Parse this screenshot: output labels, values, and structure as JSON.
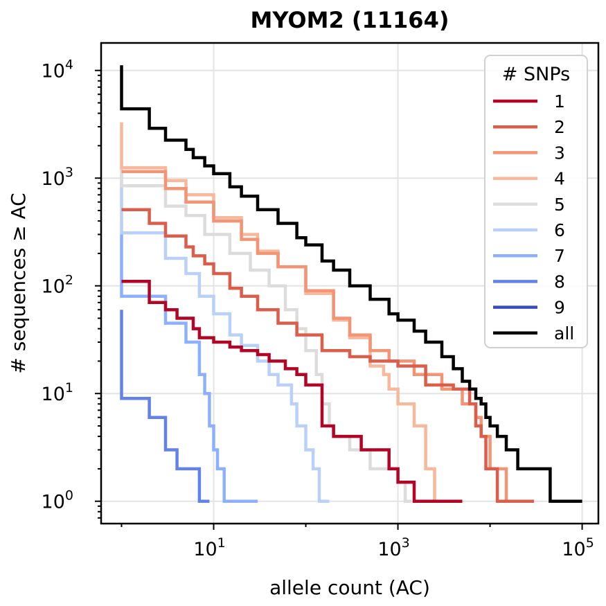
{
  "chart_data": {
    "type": "line",
    "title": "MYOM2 (11164)",
    "xlabel": "allele count (AC)",
    "ylabel": "# sequences ≥ AC",
    "xscale": "log",
    "yscale": "log",
    "xlim": [
      0.6,
      150000
    ],
    "ylim": [
      0.62,
      18000
    ],
    "xticks": [
      {
        "value": 10,
        "base": "10",
        "exp": "1"
      },
      {
        "value": 1000,
        "base": "10",
        "exp": "3"
      },
      {
        "value": 100000,
        "base": "10",
        "exp": "5"
      }
    ],
    "yticks": [
      {
        "value": 1,
        "base": "10",
        "exp": "0"
      },
      {
        "value": 10,
        "base": "10",
        "exp": "1"
      },
      {
        "value": 100,
        "base": "10",
        "exp": "2"
      },
      {
        "value": 1000,
        "base": "10",
        "exp": "3"
      },
      {
        "value": 10000,
        "base": "10",
        "exp": "4"
      }
    ],
    "grid": true,
    "legend": {
      "title": "# SNPs",
      "position": "top-right"
    },
    "series": [
      {
        "name": "all",
        "color": "#000000",
        "points": [
          [
            1,
            11164
          ],
          [
            1,
            4400
          ],
          [
            2,
            4400
          ],
          [
            2,
            2900
          ],
          [
            3,
            2900
          ],
          [
            3,
            2250
          ],
          [
            4,
            2250
          ],
          [
            5,
            1850
          ],
          [
            6,
            1550
          ],
          [
            8,
            1300
          ],
          [
            10,
            1100
          ],
          [
            15,
            830
          ],
          [
            20,
            680
          ],
          [
            30,
            510
          ],
          [
            50,
            380
          ],
          [
            80,
            280
          ],
          [
            100,
            240
          ],
          [
            150,
            170
          ],
          [
            200,
            140
          ],
          [
            300,
            100
          ],
          [
            500,
            75
          ],
          [
            800,
            55
          ],
          [
            1000,
            48
          ],
          [
            1500,
            38
          ],
          [
            2000,
            30
          ],
          [
            3000,
            22
          ],
          [
            4000,
            17
          ],
          [
            5000,
            13
          ],
          [
            6000,
            11
          ],
          [
            7000,
            9
          ],
          [
            8000,
            8
          ],
          [
            9000,
            6
          ],
          [
            10000,
            5
          ],
          [
            12000,
            4
          ],
          [
            15000,
            3
          ],
          [
            20000,
            3
          ],
          [
            20000,
            2
          ],
          [
            45000,
            2
          ],
          [
            45000,
            1
          ],
          [
            100000,
            1
          ]
        ]
      },
      {
        "name": "1",
        "color": "#b40426",
        "points": [
          [
            1,
            110
          ],
          [
            2,
            110
          ],
          [
            2,
            70
          ],
          [
            3,
            70
          ],
          [
            3,
            60
          ],
          [
            4,
            60
          ],
          [
            4,
            50
          ],
          [
            5,
            50
          ],
          [
            6,
            40
          ],
          [
            7,
            33
          ],
          [
            10,
            30
          ],
          [
            15,
            27
          ],
          [
            20,
            25
          ],
          [
            30,
            23
          ],
          [
            40,
            20
          ],
          [
            60,
            17
          ],
          [
            80,
            15
          ],
          [
            100,
            12
          ],
          [
            150,
            9
          ],
          [
            150,
            5
          ],
          [
            200,
            5
          ],
          [
            200,
            4
          ],
          [
            300,
            4
          ],
          [
            400,
            3
          ],
          [
            500,
            3
          ],
          [
            800,
            3
          ],
          [
            800,
            2
          ],
          [
            1000,
            2
          ],
          [
            1000,
            1.5
          ],
          [
            1500,
            1.5
          ],
          [
            1500,
            1
          ],
          [
            5000,
            1
          ]
        ]
      },
      {
        "name": "2",
        "color": "#dc5d4a",
        "points": [
          [
            1,
            510
          ],
          [
            2,
            510
          ],
          [
            2,
            380
          ],
          [
            3,
            380
          ],
          [
            3,
            290
          ],
          [
            4,
            290
          ],
          [
            5,
            230
          ],
          [
            6,
            190
          ],
          [
            8,
            160
          ],
          [
            10,
            130
          ],
          [
            15,
            95
          ],
          [
            20,
            80
          ],
          [
            30,
            60
          ],
          [
            50,
            45
          ],
          [
            80,
            35
          ],
          [
            150,
            25
          ],
          [
            300,
            22
          ],
          [
            500,
            20
          ],
          [
            1000,
            18
          ],
          [
            2000,
            12
          ],
          [
            4000,
            11
          ],
          [
            6000,
            8
          ],
          [
            7000,
            5
          ],
          [
            8000,
            4
          ],
          [
            9000,
            3
          ],
          [
            9000,
            2
          ],
          [
            10000,
            2
          ],
          [
            12000,
            1
          ],
          [
            30000,
            1
          ]
        ]
      },
      {
        "name": "3",
        "color": "#f39475",
        "points": [
          [
            1,
            1150
          ],
          [
            3,
            1150
          ],
          [
            3,
            800
          ],
          [
            5,
            600
          ],
          [
            10,
            400
          ],
          [
            20,
            270
          ],
          [
            30,
            200
          ],
          [
            50,
            150
          ],
          [
            100,
            90
          ],
          [
            200,
            50
          ],
          [
            300,
            35
          ],
          [
            500,
            25
          ],
          [
            800,
            20
          ],
          [
            1500,
            15
          ],
          [
            3000,
            11
          ],
          [
            5000,
            8
          ],
          [
            7000,
            6
          ],
          [
            8000,
            4
          ],
          [
            10000,
            3
          ],
          [
            10000,
            2
          ],
          [
            15000,
            2
          ],
          [
            15000,
            1
          ],
          [
            20000,
            1
          ]
        ]
      },
      {
        "name": "4",
        "color": "#f7b89c",
        "points": [
          [
            1,
            3300
          ],
          [
            1,
            1250
          ],
          [
            3,
            1250
          ],
          [
            3,
            950
          ],
          [
            5,
            700
          ],
          [
            10,
            430
          ],
          [
            20,
            300
          ],
          [
            30,
            210
          ],
          [
            50,
            150
          ],
          [
            100,
            85
          ],
          [
            200,
            48
          ],
          [
            300,
            33
          ],
          [
            500,
            18
          ],
          [
            700,
            15
          ],
          [
            800,
            11
          ],
          [
            1000,
            8
          ],
          [
            1500,
            5
          ],
          [
            2000,
            3
          ],
          [
            2000,
            2
          ],
          [
            2500,
            2
          ],
          [
            2500,
            1
          ],
          [
            4000,
            1
          ]
        ]
      },
      {
        "name": "5",
        "color": "#dddcdc",
        "points": [
          [
            1,
            2600
          ],
          [
            1,
            850
          ],
          [
            3,
            850
          ],
          [
            3,
            550
          ],
          [
            5,
            450
          ],
          [
            8,
            300
          ],
          [
            15,
            200
          ],
          [
            25,
            140
          ],
          [
            40,
            100
          ],
          [
            60,
            60
          ],
          [
            80,
            40
          ],
          [
            100,
            25
          ],
          [
            130,
            15
          ],
          [
            150,
            8
          ],
          [
            180,
            5
          ],
          [
            200,
            4
          ],
          [
            300,
            3
          ],
          [
            500,
            3
          ],
          [
            500,
            2
          ],
          [
            800,
            2
          ],
          [
            1000,
            1.5
          ],
          [
            1200,
            1
          ],
          [
            1400,
            1
          ]
        ]
      },
      {
        "name": "6",
        "color": "#b9d0f9",
        "points": [
          [
            1,
            1100
          ],
          [
            1,
            310
          ],
          [
            3,
            310
          ],
          [
            3,
            180
          ],
          [
            5,
            130
          ],
          [
            7,
            80
          ],
          [
            10,
            55
          ],
          [
            15,
            35
          ],
          [
            20,
            28
          ],
          [
            30,
            20
          ],
          [
            40,
            15
          ],
          [
            50,
            12
          ],
          [
            70,
            8
          ],
          [
            80,
            5
          ],
          [
            100,
            3
          ],
          [
            120,
            2
          ],
          [
            140,
            1
          ],
          [
            180,
            1
          ]
        ]
      },
      {
        "name": "7",
        "color": "#8db0fe",
        "points": [
          [
            1,
            300
          ],
          [
            1,
            80
          ],
          [
            3,
            80
          ],
          [
            3,
            45
          ],
          [
            5,
            30
          ],
          [
            7,
            15
          ],
          [
            8,
            10
          ],
          [
            9,
            5
          ],
          [
            10,
            3
          ],
          [
            11,
            2
          ],
          [
            13,
            1
          ],
          [
            30,
            1
          ]
        ]
      },
      {
        "name": "8",
        "color": "#6282ea",
        "points": [
          [
            1,
            60
          ],
          [
            1,
            9
          ],
          [
            2,
            9
          ],
          [
            2,
            6
          ],
          [
            3,
            6
          ],
          [
            3,
            3
          ],
          [
            4,
            3
          ],
          [
            4,
            2
          ],
          [
            6,
            2
          ],
          [
            7,
            1
          ],
          [
            9,
            1
          ]
        ]
      },
      {
        "name": "9",
        "color": "#3b4cc0",
        "points": []
      }
    ]
  }
}
